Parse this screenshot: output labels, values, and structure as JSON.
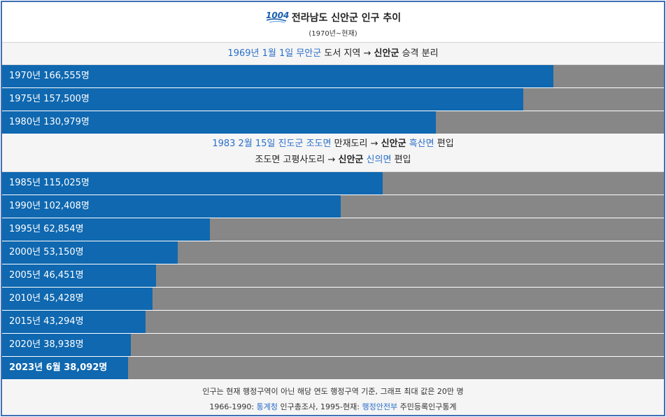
{
  "chart_data": {
    "type": "bar",
    "orientation": "horizontal",
    "title": "전라남도 신안군 인구 추이",
    "subtitle": "(1970년~현재)",
    "logo_text": "1004",
    "xlim": [
      0,
      200000
    ],
    "bars": [
      {
        "label": "1970년 166,555명",
        "value": 166555,
        "bold": false
      },
      {
        "label": "1975년 157,500명",
        "value": 157500,
        "bold": false
      },
      {
        "label": "1980년 130,979명",
        "value": 130979,
        "bold": false
      },
      {
        "label": "1985년 115,025명",
        "value": 115025,
        "bold": false
      },
      {
        "label": "1990년 102,408명",
        "value": 102408,
        "bold": false
      },
      {
        "label": "1995년 62,854명",
        "value": 62854,
        "bold": false
      },
      {
        "label": "2000년 53,150명",
        "value": 53150,
        "bold": false
      },
      {
        "label": "2005년 46,451명",
        "value": 46451,
        "bold": false
      },
      {
        "label": "2010년 45,428명",
        "value": 45428,
        "bold": false
      },
      {
        "label": "2015년 43,294명",
        "value": 43294,
        "bold": false
      },
      {
        "label": "2020년 38,938명",
        "value": 38938,
        "bold": false
      },
      {
        "label": "2023년 6월 38,092명",
        "value": 38092,
        "bold": true
      }
    ],
    "annotations": {
      "note1": {
        "date": "1969년 1월 1일",
        "county": "무안군",
        "rest": "도서 지역",
        "arrow": "→",
        "target": "신안군",
        "end": "승격 분리"
      },
      "note2": {
        "date": "1983 2월 15일",
        "county": "진도군",
        "town": "조도면",
        "village": "만재도리",
        "arrow": "→",
        "target": "신안군",
        "dest": "흑산면",
        "end": "편입"
      },
      "note3": {
        "prefix": "조도면 고평사도리",
        "arrow": "→",
        "target": "신안군",
        "dest": "신의면",
        "end": "편입"
      }
    },
    "footer": {
      "line1": "인구는 현재 행정구역이 아닌 해당 연도 행정구역 기준, 그래프 최대 값은 20만 명",
      "line2_a": "1966-1990:",
      "line2_link1": "통계청",
      "line2_b": "인구총조사, 1995-현재:",
      "line2_link2": "행정안전부",
      "line2_c": "주민등록인구통계"
    },
    "colors": {
      "bar": "#0f68b0",
      "background_bar": "#878787",
      "link": "#2a6fc9",
      "border": "#3f6fb5"
    }
  }
}
